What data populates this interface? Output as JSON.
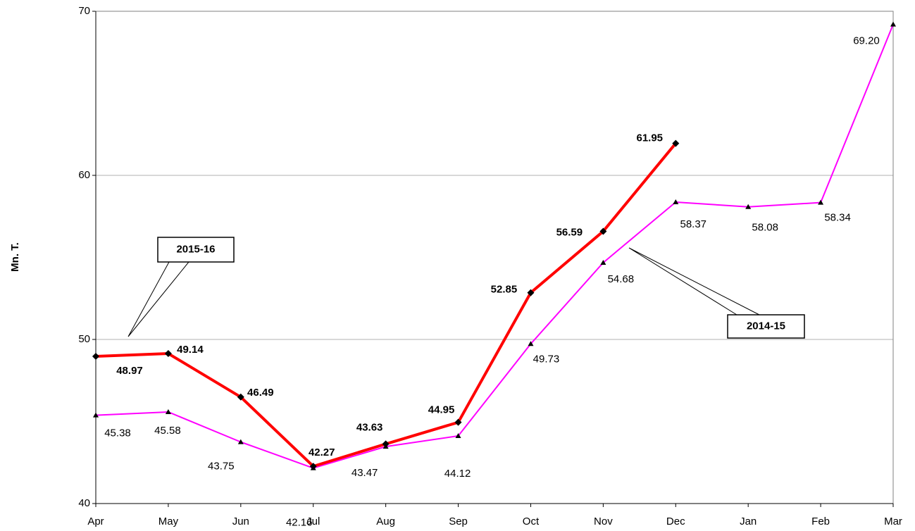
{
  "chart_data": {
    "type": "line",
    "y_label": "Mn. T.",
    "categories": [
      "Apr",
      "May",
      "Jun",
      "Jul",
      "Aug",
      "Sep",
      "Oct",
      "Nov",
      "Dec",
      "Jan",
      "Feb",
      "Mar"
    ],
    "series": [
      {
        "name": "2015-16",
        "color": "#ff0000",
        "marker": "diamond",
        "values": [
          48.97,
          49.14,
          46.49,
          42.27,
          43.63,
          44.95,
          52.85,
          56.59,
          61.95,
          null,
          null,
          null
        ]
      },
      {
        "name": "2014-15",
        "color": "#ff00ff",
        "marker": "triangle",
        "values": [
          45.38,
          45.58,
          43.75,
          42.16,
          43.47,
          44.12,
          49.73,
          54.68,
          58.37,
          58.08,
          58.34,
          69.2
        ],
        "value_labels": [
          "45.38",
          "45.58",
          "43.75",
          "42.16",
          "43.47",
          "44.12",
          "49.73",
          "54.68",
          "58.37",
          "58.08",
          "58.34",
          "69.20"
        ]
      }
    ],
    "ylim": [
      40,
      70
    ],
    "yticks": [
      40,
      50,
      60,
      70
    ],
    "grid": true
  }
}
